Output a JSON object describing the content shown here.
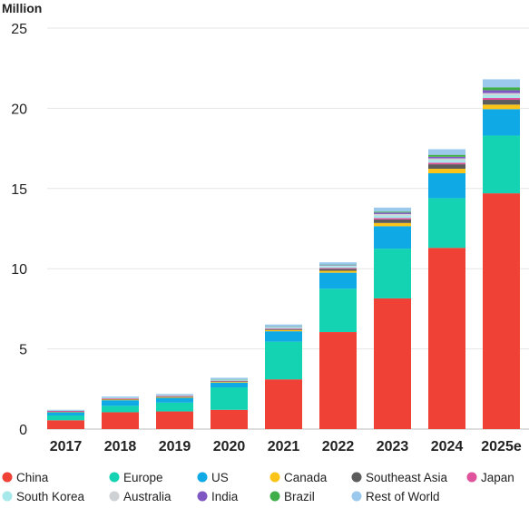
{
  "chart_data": {
    "type": "bar",
    "stacked": true,
    "unit_label": "Million",
    "categories": [
      "2017",
      "2018",
      "2019",
      "2020",
      "2021",
      "2022",
      "2023",
      "2024",
      "2025e"
    ],
    "ylim": [
      0,
      25
    ],
    "yticks": [
      0,
      5,
      10,
      15,
      20,
      25
    ],
    "grid": true,
    "legend_position": "bottom",
    "series": [
      {
        "name": "China",
        "color": "#ef4136",
        "values": [
          0.55,
          1.05,
          1.1,
          1.2,
          3.1,
          6.05,
          8.15,
          11.3,
          14.7
        ]
      },
      {
        "name": "Europe",
        "color": "#14d3b2",
        "values": [
          0.3,
          0.4,
          0.55,
          1.4,
          2.35,
          2.7,
          3.1,
          3.1,
          3.6
        ]
      },
      {
        "name": "US",
        "color": "#0fa9e6",
        "values": [
          0.2,
          0.35,
          0.3,
          0.3,
          0.65,
          1.0,
          1.4,
          1.55,
          1.65
        ]
      },
      {
        "name": "Canada",
        "color": "#fcc419",
        "values": [
          0.02,
          0.04,
          0.05,
          0.05,
          0.08,
          0.12,
          0.2,
          0.28,
          0.28
        ]
      },
      {
        "name": "Southeast Asia",
        "color": "#5c5c5c",
        "values": [
          0.01,
          0.02,
          0.02,
          0.03,
          0.05,
          0.12,
          0.22,
          0.28,
          0.3
        ]
      },
      {
        "name": "Japan",
        "color": "#e0529c",
        "values": [
          0.05,
          0.05,
          0.04,
          0.03,
          0.04,
          0.06,
          0.09,
          0.1,
          0.12
        ]
      },
      {
        "name": "South Korea",
        "color": "#a7e8ea",
        "values": [
          0.01,
          0.04,
          0.04,
          0.07,
          0.09,
          0.12,
          0.15,
          0.16,
          0.18
        ]
      },
      {
        "name": "Australia",
        "color": "#cfd2d4",
        "values": [
          0.01,
          0.01,
          0.01,
          0.01,
          0.02,
          0.04,
          0.1,
          0.11,
          0.12
        ]
      },
      {
        "name": "India",
        "color": "#7e57c2",
        "values": [
          0.0,
          0.0,
          0.0,
          0.0,
          0.01,
          0.02,
          0.09,
          0.1,
          0.18
        ]
      },
      {
        "name": "Brazil",
        "color": "#3fae49",
        "values": [
          0.0,
          0.0,
          0.0,
          0.01,
          0.01,
          0.02,
          0.06,
          0.12,
          0.18
        ]
      },
      {
        "name": "Rest of World",
        "color": "#9bc9ee",
        "values": [
          0.05,
          0.07,
          0.08,
          0.1,
          0.12,
          0.15,
          0.25,
          0.35,
          0.5
        ]
      }
    ]
  }
}
